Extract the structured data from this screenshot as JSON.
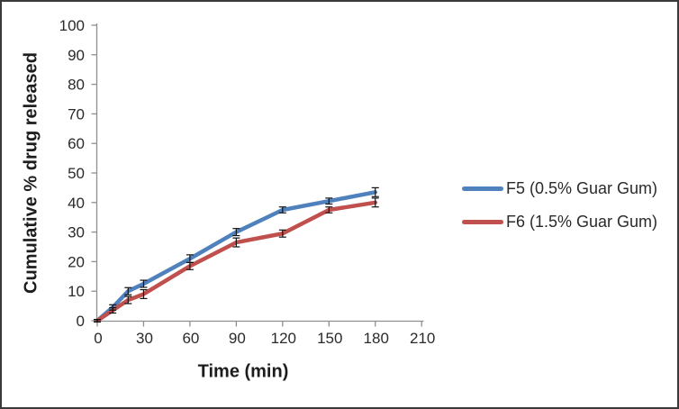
{
  "figure": {
    "background": "#ffffff",
    "border_color": "#3a3a3a"
  },
  "chart_data": {
    "type": "line",
    "title": "",
    "xlabel": "Time (min)",
    "ylabel": "Cumulative % drug released",
    "x": [
      0,
      10,
      20,
      30,
      60,
      90,
      120,
      150,
      180
    ],
    "series": [
      {
        "name": "F5 (0.5% Guar Gum)",
        "color": "#4F81BD",
        "values": [
          0,
          4.5,
          10,
          12.5,
          21,
          30,
          37.5,
          40.5,
          43.5
        ],
        "errors": [
          0.4,
          0.9,
          1.2,
          1.2,
          1.3,
          1.2,
          1.0,
          1.0,
          1.5
        ]
      },
      {
        "name": "F6 (1.5% Guar Gum)",
        "color": "#C0504D",
        "values": [
          0,
          3.5,
          7,
          9,
          18.5,
          26.5,
          29.5,
          37.5,
          40
        ],
        "errors": [
          0.4,
          0.9,
          1.2,
          1.5,
          1.2,
          1.5,
          1.2,
          1.0,
          1.5
        ]
      }
    ],
    "xlim": [
      0,
      210
    ],
    "ylim": [
      0,
      100
    ],
    "x_ticks": [
      0,
      30,
      60,
      90,
      120,
      150,
      180,
      210
    ],
    "y_ticks": [
      0,
      10,
      20,
      30,
      40,
      50,
      60,
      70,
      80,
      90,
      100
    ],
    "grid": false,
    "error_bars": true,
    "legend_position": "right",
    "axis_color": "#8f8f8f",
    "tick_label_color": "#2a2a2a",
    "error_bar_color": "#111111"
  }
}
